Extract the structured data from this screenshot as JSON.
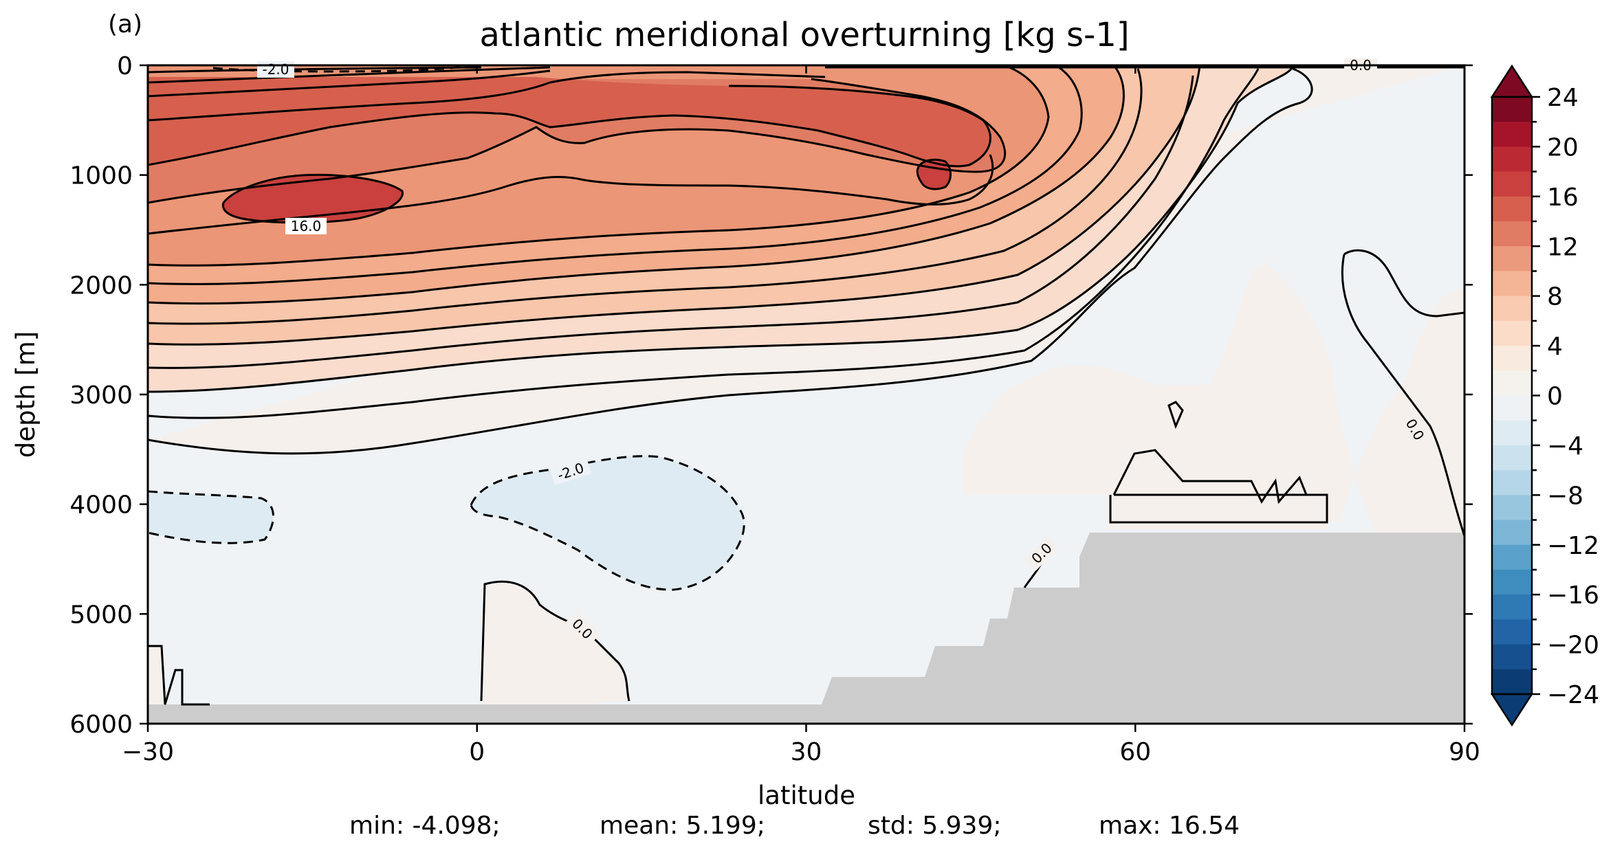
{
  "chart_data": {
    "type": "heatmap",
    "title": "atlantic meridional overturning [kg s-1]",
    "panel_label": "(a)",
    "xlabel": "latitude",
    "ylabel": "depth [m]",
    "xlim": [
      -30,
      90
    ],
    "ylim": [
      6000,
      0
    ],
    "x_ticks": [
      -30,
      0,
      30,
      60,
      90
    ],
    "x_tick_labels": [
      "−30",
      "0",
      "30",
      "60",
      "90"
    ],
    "y_ticks": [
      0,
      1000,
      2000,
      3000,
      4000,
      5000,
      6000
    ],
    "y_tick_labels": [
      "0",
      "1000",
      "2000",
      "3000",
      "4000",
      "5000",
      "6000"
    ],
    "colorbar": {
      "min": -24,
      "max": 24,
      "step": 2,
      "ticks": [
        24,
        20,
        16,
        12,
        8,
        4,
        0,
        -4,
        -8,
        -12,
        -16,
        -20,
        -24
      ],
      "tick_labels": [
        "24",
        "20",
        "16",
        "12",
        "8",
        "4",
        "0",
        "−4",
        "−8",
        "−12",
        "−16",
        "−20",
        "−24"
      ],
      "colors_high_to_low": [
        "#7d0a22",
        "#a51429",
        "#bb2a33",
        "#c9403e",
        "#d6604d",
        "#e07c63",
        "#ec9a7e",
        "#f4b596",
        "#f9cbb0",
        "#fbdcc8",
        "#f9eadf",
        "#f5f1ed",
        "#edf1f4",
        "#deebf2",
        "#cbe2ee",
        "#b5d6e8",
        "#99c6df",
        "#7cb6d6",
        "#5aa1cc",
        "#3f8dbf",
        "#2f79b5",
        "#2264a6",
        "#16508f",
        "#0b3d74"
      ]
    },
    "contour_labels": [
      "-2.0",
      "16.0",
      "-2.0",
      "0.0",
      "0.0",
      "0.0",
      "0.0"
    ],
    "land_color": "#cccccc",
    "stats": {
      "min_text": "min: -4.098;",
      "mean_text": "mean: 5.199;",
      "std_text": "std: 5.939;",
      "max_text": "max: 16.54"
    }
  }
}
